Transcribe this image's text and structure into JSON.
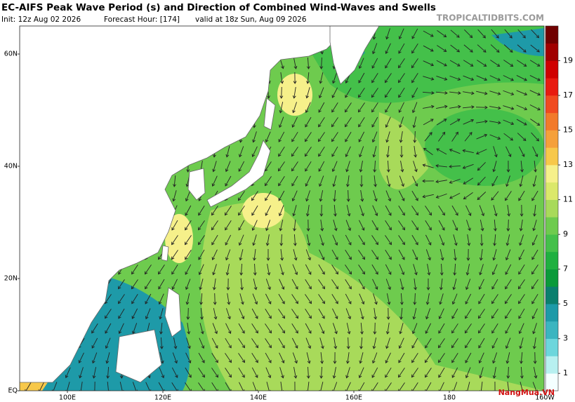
{
  "header": {
    "title": "EC-AIFS Peak Wave Period (s) and Direction of Combined Wind-Waves and Swells",
    "init": "Init: 12z Aug 02 2026",
    "forecast_hour": "Forecast Hour: [174]",
    "valid": "valid at 18z Sun, Aug 09 2026",
    "source": "TROPICALTIDBITS.COM"
  },
  "map": {
    "lat_labels": [
      "60N",
      "40N",
      "20N",
      "EQ"
    ],
    "lon_labels": [
      "100E",
      "120E",
      "140E",
      "160E",
      "180",
      "160W"
    ]
  },
  "colorbar": {
    "ticks": [
      1,
      3,
      5,
      7,
      9,
      11,
      13,
      15,
      17,
      19
    ],
    "colors": [
      "#f4ffff",
      "#b7f0f0",
      "#6cd6dc",
      "#3bb5c0",
      "#1e9aa8",
      "#0b7f6e",
      "#0a9a3a",
      "#1fb040",
      "#44c04a",
      "#6ecb4e",
      "#a8da5a",
      "#dbe86a",
      "#f6f08a",
      "#f7c84a",
      "#f5a03a",
      "#f27a2a",
      "#f04a20",
      "#e81a10",
      "#d00000",
      "#a00000",
      "#700000"
    ]
  },
  "logo": "NangMua.VN"
}
